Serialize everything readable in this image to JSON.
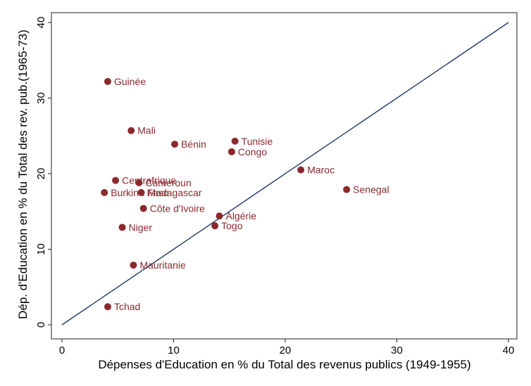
{
  "chart_data": {
    "type": "scatter",
    "title": "",
    "xlabel": "Dépenses d'Education en % du Total des revenus publics (1949-1955)",
    "ylabel": "Dép. d'Education en % du Total des rev. pub.(1965-73)",
    "xlim": [
      0,
      40
    ],
    "ylim": [
      0,
      40
    ],
    "xticks": [
      0,
      10,
      20,
      30,
      40
    ],
    "yticks": [
      0,
      10,
      20,
      30,
      40
    ],
    "grid": false,
    "reference_line": {
      "from": [
        0,
        0
      ],
      "to": [
        40,
        40
      ],
      "color": "#1f3a68"
    },
    "marker_color": "#8b2a2e",
    "label_color": "#8b2a2e",
    "points": [
      {
        "label": "Guinée",
        "x": 4.1,
        "y": 32.2
      },
      {
        "label": "Mali",
        "x": 6.2,
        "y": 25.7
      },
      {
        "label": "Bénin",
        "x": 10.1,
        "y": 23.9
      },
      {
        "label": "Tunisie",
        "x": 15.5,
        "y": 24.3
      },
      {
        "label": "Congo",
        "x": 15.2,
        "y": 22.9
      },
      {
        "label": "Maroc",
        "x": 21.4,
        "y": 20.5
      },
      {
        "label": "Senegal",
        "x": 25.5,
        "y": 17.9
      },
      {
        "label": "Centrafrique",
        "x": 4.8,
        "y": 19.1
      },
      {
        "label": "Cameroun",
        "x": 6.9,
        "y": 18.8
      },
      {
        "label": "Burkina Faso",
        "x": 3.8,
        "y": 17.5
      },
      {
        "label": "Madagascar",
        "x": 7.1,
        "y": 17.5
      },
      {
        "label": "Côte d'Ivoire",
        "x": 7.3,
        "y": 15.4
      },
      {
        "label": "Algérie",
        "x": 14.1,
        "y": 14.4
      },
      {
        "label": "Togo",
        "x": 13.7,
        "y": 13.1
      },
      {
        "label": "Niger",
        "x": 5.4,
        "y": 12.9
      },
      {
        "label": "Mauritanie",
        "x": 6.4,
        "y": 7.9
      },
      {
        "label": "Tchad",
        "x": 4.1,
        "y": 2.4
      }
    ]
  }
}
